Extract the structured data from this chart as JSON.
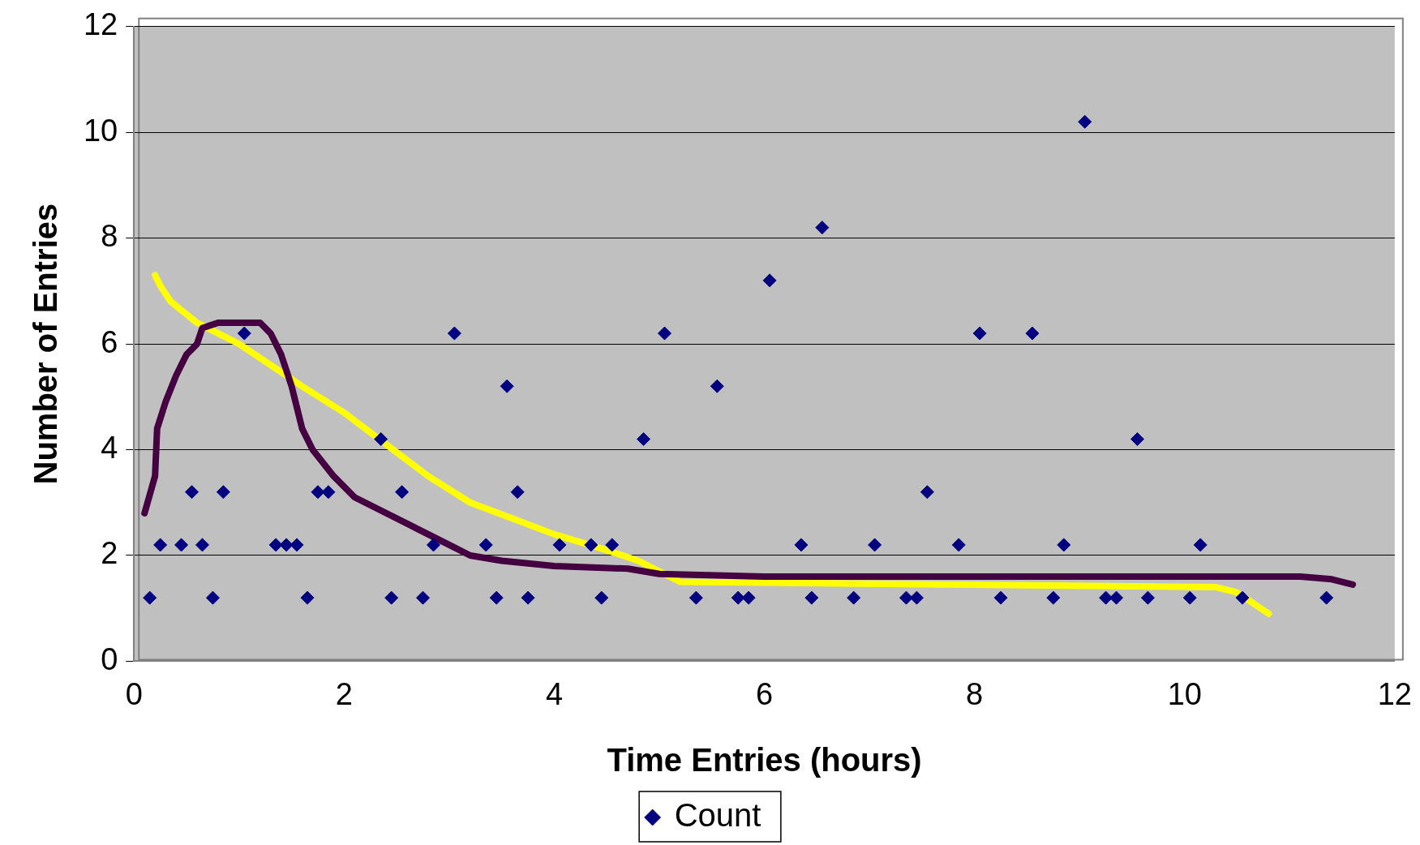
{
  "chart_data": {
    "type": "scatter",
    "xlabel": "Time Entries (hours)",
    "ylabel": "Number of Entries",
    "xlim": [
      0,
      12
    ],
    "xticks": [
      0,
      2,
      4,
      6,
      8,
      10,
      12
    ],
    "ylim": [
      0,
      12
    ],
    "yticks": [
      0,
      2,
      4,
      6,
      8,
      10,
      12
    ],
    "grid": "y",
    "legend": "bottom",
    "marker": "diamond",
    "series": [
      {
        "name": "Count",
        "color": "#000080",
        "x": [
          0.15,
          0.25,
          0.45,
          0.55,
          0.65,
          0.75,
          0.85,
          1.05,
          1.35,
          1.45,
          1.55,
          1.65,
          1.75,
          1.85,
          2.35,
          2.45,
          2.55,
          2.75,
          2.85,
          3.05,
          3.35,
          3.45,
          3.55,
          3.65,
          3.75,
          4.05,
          4.35,
          4.45,
          4.55,
          4.85,
          5.05,
          5.35,
          5.55,
          5.75,
          5.85,
          6.05,
          6.35,
          6.45,
          6.55,
          6.85,
          7.05,
          7.35,
          7.45,
          7.55,
          7.85,
          8.05,
          8.25,
          8.55,
          8.75,
          8.85,
          9.05,
          9.25,
          9.35,
          9.55,
          9.65,
          10.05,
          10.15,
          10.55,
          11.35
        ],
        "values": [
          1.2,
          2.2,
          2.2,
          3.2,
          2.2,
          1.2,
          3.2,
          6.2,
          2.2,
          2.2,
          2.2,
          1.2,
          3.2,
          3.2,
          4.2,
          1.2,
          3.2,
          1.2,
          2.2,
          6.2,
          2.2,
          1.2,
          5.2,
          3.2,
          1.2,
          2.2,
          2.2,
          1.2,
          2.2,
          4.2,
          6.2,
          1.2,
          5.2,
          1.2,
          1.2,
          7.2,
          2.2,
          1.2,
          8.2,
          1.2,
          2.2,
          1.2,
          1.2,
          3.2,
          2.2,
          6.2,
          1.2,
          6.2,
          1.2,
          2.2,
          10.2,
          1.2,
          1.2,
          4.2,
          1.2,
          1.2,
          2.2,
          1.2,
          1.2
        ]
      },
      {
        "color": "#440040",
        "type": "line",
        "marker": "none",
        "x": [
          0.1,
          0.2,
          0.22,
          0.3,
          0.4,
          0.5,
          0.6,
          0.65,
          0.8,
          1.2,
          1.3,
          1.4,
          1.5,
          1.6,
          1.7,
          1.9,
          2.1,
          2.4,
          2.7,
          3.0,
          3.2,
          3.5,
          4.0,
          4.7,
          5.0,
          6.0,
          11.1,
          11.4,
          11.6
        ],
        "values": [
          2.8,
          3.5,
          4.4,
          4.9,
          5.4,
          5.8,
          6.0,
          6.3,
          6.4,
          6.4,
          6.2,
          5.8,
          5.2,
          4.4,
          4.0,
          3.5,
          3.1,
          2.8,
          2.5,
          2.2,
          2.0,
          1.9,
          1.8,
          1.75,
          1.65,
          1.6,
          1.6,
          1.55,
          1.45
        ]
      },
      {
        "color": "#ffff00",
        "type": "line",
        "marker": "none",
        "x": [
          0.2,
          0.25,
          0.35,
          0.6,
          1.0,
          1.3,
          1.6,
          2.0,
          2.4,
          2.8,
          3.2,
          3.6,
          4.0,
          4.5,
          4.8,
          5.2,
          10.3,
          10.5,
          10.8
        ],
        "values": [
          7.3,
          7.1,
          6.8,
          6.4,
          6.0,
          5.6,
          5.2,
          4.7,
          4.1,
          3.5,
          3.0,
          2.7,
          2.4,
          2.1,
          1.9,
          1.5,
          1.4,
          1.3,
          0.9
        ]
      }
    ]
  }
}
